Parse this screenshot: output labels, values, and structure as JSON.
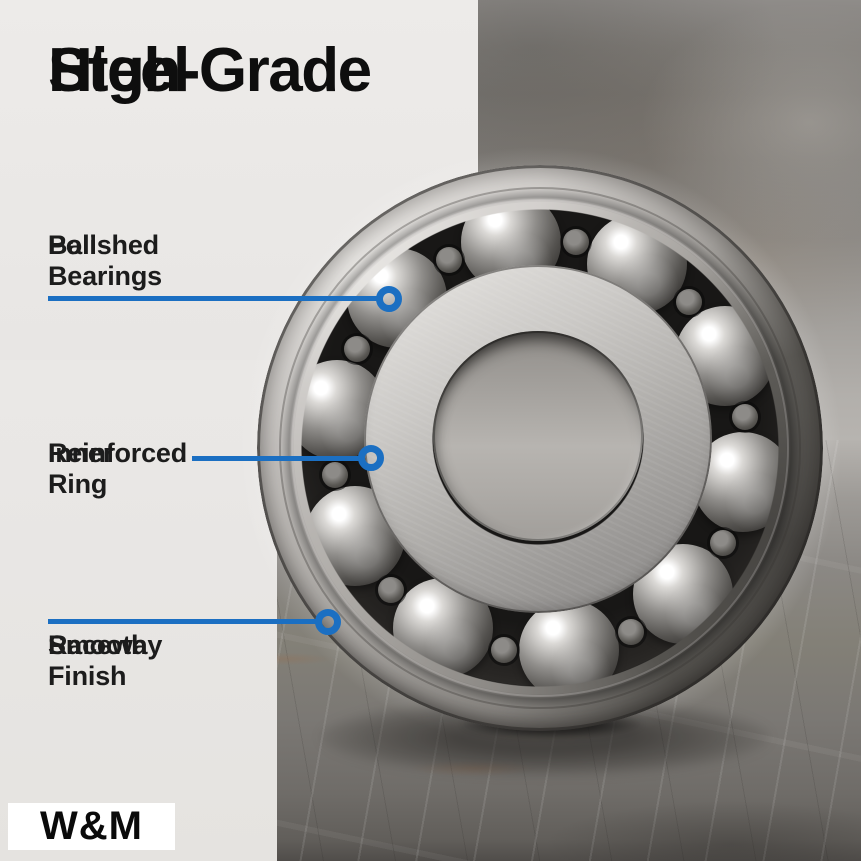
{
  "title": {
    "line1": "High-Grade",
    "line2": "Steel"
  },
  "callouts": [
    {
      "line1": "Polished",
      "line2": "Ball Bearings"
    },
    {
      "line1": "Reinforced",
      "line2": "Inner Ring"
    },
    {
      "line1": "Smooth",
      "line2": "Raceway Finish"
    }
  ],
  "logo": {
    "text": "W&M"
  },
  "colors": {
    "accent_blue": "#1b6fc2",
    "panel": "#e9e7e5",
    "title_text": "#0e0e0e",
    "body_text": "#1c1c1c",
    "logo_bg": "#ffffff",
    "logo_text": "#0a0a0a"
  }
}
